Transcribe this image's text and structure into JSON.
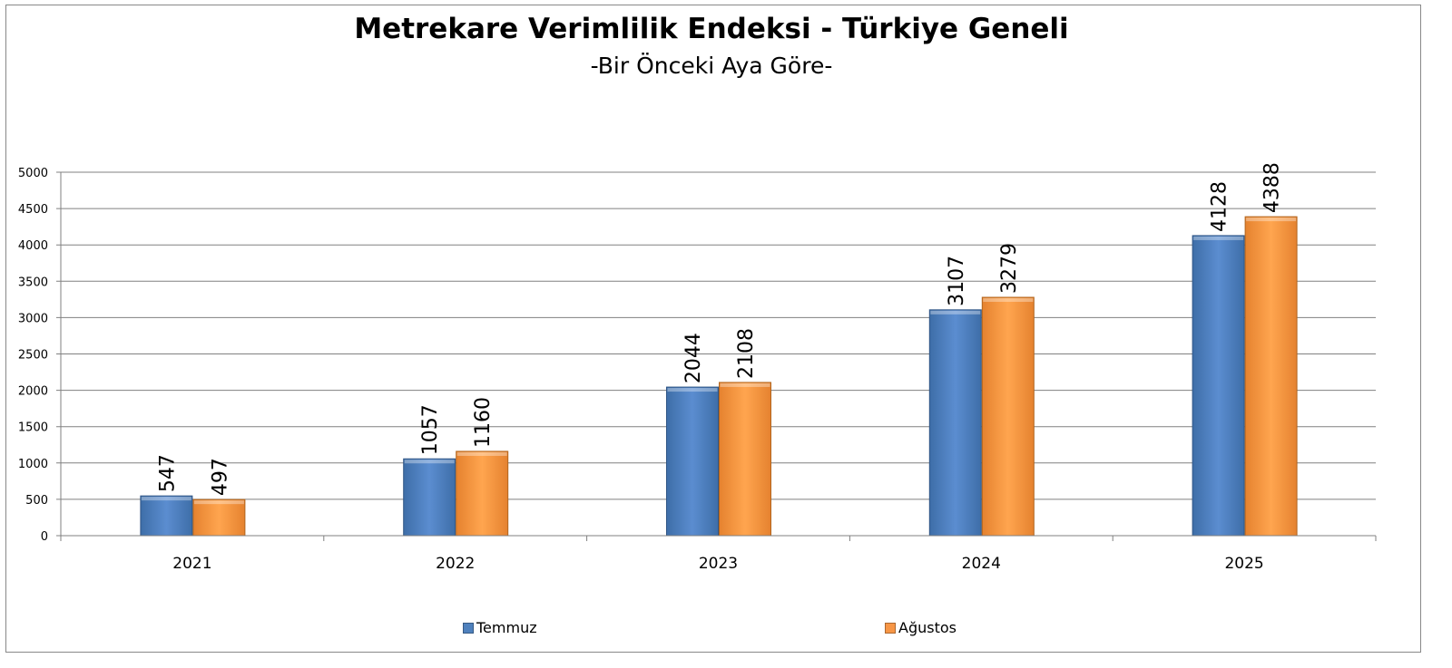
{
  "chart_data": {
    "type": "bar",
    "title": "Metrekare Verimlilik Endeksi - Türkiye Geneli",
    "subtitle": "-Bir Önceki Aya Göre-",
    "categories": [
      "2021",
      "2022",
      "2023",
      "2024",
      "2025"
    ],
    "series": [
      {
        "name": "Temmuz",
        "values": [
          547,
          1057,
          2044,
          3107,
          4128
        ],
        "color": "#4f81bd"
      },
      {
        "name": "Ağustos",
        "values": [
          497,
          1160,
          2108,
          3279,
          4388
        ],
        "color": "#f79646"
      }
    ],
    "ylim": [
      0,
      5000
    ],
    "yticks": [
      "0",
      "500",
      "1000",
      "1500",
      "2000",
      "2500",
      "3000",
      "3500",
      "4000",
      "4500",
      "5000"
    ],
    "grid": true,
    "legend": "bottom",
    "data_labels": "rotated vertical"
  }
}
